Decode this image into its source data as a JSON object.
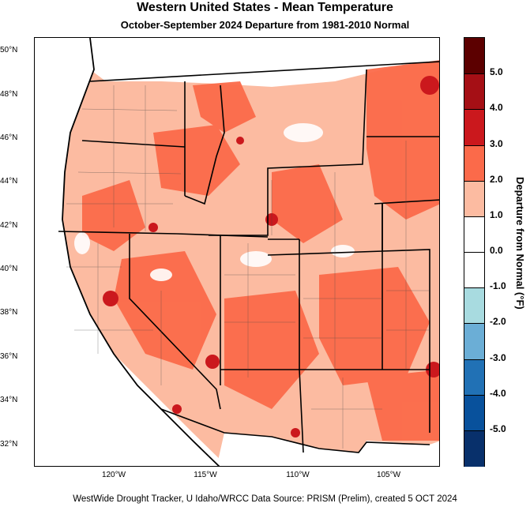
{
  "title": "Western United States - Mean Temperature",
  "subtitle": "October-September 2024  Departure from 1981-2010 Normal",
  "footer": "WestWide Drought Tracker, U Idaho/WRCC Data Source: PRISM (Prelim), created  5 OCT 2024",
  "latitude_labels": [
    "50°N",
    "48°N",
    "46°N",
    "44°N",
    "42°N",
    "40°N",
    "38°N",
    "36°N",
    "34°N",
    "32°N"
  ],
  "longitude_labels": [
    "120°W",
    "115°W",
    "110°W",
    "105°W"
  ],
  "colorbar": {
    "title": "Departure from Normal (°F)",
    "tick_labels": [
      "5.0",
      "4.0",
      "3.0",
      "2.0",
      "1.0",
      "0.0",
      "-1.0",
      "-2.0",
      "-3.0",
      "-4.0",
      "-5.0"
    ],
    "colors": [
      "#5c0000",
      "#a50f15",
      "#cb181d",
      "#fb6a4a",
      "#fcbba1",
      "#ffffff",
      "#ffffff",
      "#a8dbe0",
      "#6baed6",
      "#2171b5",
      "#08519c",
      "#08306b"
    ]
  },
  "map_colors": {
    "warm_light": "#fcbba1",
    "warm_mid": "#fb6a4a",
    "warm_strong": "#cb181d",
    "water": "#ffffff",
    "border": "#000000"
  }
}
